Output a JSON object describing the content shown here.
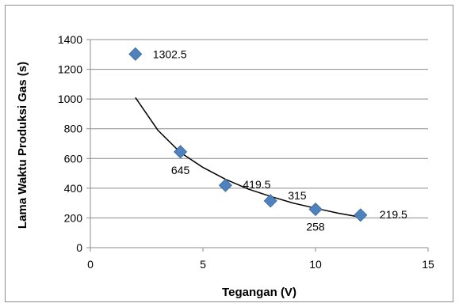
{
  "chart_data": {
    "type": "scatter",
    "title": "",
    "xlabel": "Tegangan (V)",
    "ylabel": "Lama Waktu Produksi Gas (s)",
    "xlim": [
      0,
      15
    ],
    "ylim": [
      0,
      1400
    ],
    "x_ticks": [
      "0",
      "5",
      "10",
      "15"
    ],
    "y_ticks": [
      "0",
      "200",
      "400",
      "600",
      "800",
      "1000",
      "1200",
      "1400"
    ],
    "grid": "horizontal",
    "legend": "none",
    "series": [
      {
        "color": "#4F81BD",
        "marker": "diamond",
        "points": [
          {
            "x": 2,
            "y": 1302.5,
            "label": "1302.5"
          },
          {
            "x": 4,
            "y": 645,
            "label": "645"
          },
          {
            "x": 6,
            "y": 419.5,
            "label": "419.5"
          },
          {
            "x": 8,
            "y": 315,
            "label": "315"
          },
          {
            "x": 10,
            "y": 258,
            "label": "258"
          },
          {
            "x": 12,
            "y": 219.5,
            "label": "219.5"
          }
        ]
      }
    ],
    "trendline": {
      "type": "power",
      "color": "#000000",
      "x_range": [
        2,
        12
      ],
      "points": [
        {
          "x": 2,
          "y": 1010
        },
        {
          "x": 3,
          "y": 790
        },
        {
          "x": 4,
          "y": 640
        },
        {
          "x": 5,
          "y": 540
        },
        {
          "x": 6,
          "y": 460
        },
        {
          "x": 7,
          "y": 395
        },
        {
          "x": 8,
          "y": 345
        },
        {
          "x": 9,
          "y": 300
        },
        {
          "x": 10,
          "y": 265
        },
        {
          "x": 11,
          "y": 232
        },
        {
          "x": 12,
          "y": 205
        }
      ]
    }
  }
}
